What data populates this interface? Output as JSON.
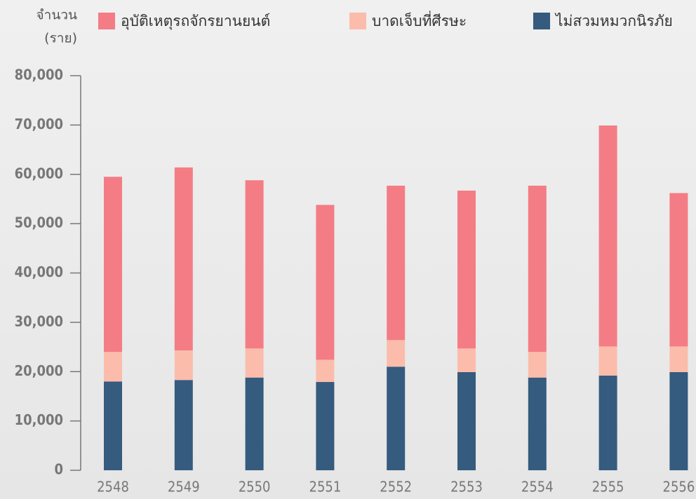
{
  "chart_data": {
    "type": "stacked_bar",
    "y_label_lines": [
      "จำนวน",
      "(ราย)"
    ],
    "categories": [
      "2548",
      "2549",
      "2550",
      "2551",
      "2552",
      "2553",
      "2554",
      "2555",
      "2556"
    ],
    "series": [
      {
        "name": "ไม่สวมหมวกนิรภัย",
        "color": "#355b7e",
        "values": [
          18000,
          18300,
          18800,
          17900,
          21000,
          19900,
          18800,
          19200,
          19900
        ]
      },
      {
        "name": "บาดเจ็บที่ศีรษะ",
        "color": "#fbbcab",
        "values": [
          6000,
          6000,
          5900,
          4500,
          5400,
          4800,
          5200,
          5900,
          5200
        ]
      },
      {
        "name": "อุบัติเหตุรถจักรยานยนต์",
        "color": "#f47c85",
        "values": [
          35500,
          37100,
          34100,
          31400,
          31300,
          32000,
          33700,
          44800,
          31100
        ]
      }
    ],
    "legend_order": [
      2,
      1,
      0
    ],
    "ylim": [
      0,
      80000
    ],
    "yticks": [
      0,
      {
        "value": 10000,
        "label": "10,000"
      },
      {
        "value": 20000,
        "label": "20,000"
      },
      {
        "value": 30000,
        "label": "30,000"
      },
      {
        "value": 40000,
        "label": "40,000"
      },
      {
        "value": 50000,
        "label": "50,000"
      },
      {
        "value": 60000,
        "label": "60,000"
      },
      {
        "value": 70000,
        "label": "70,000"
      },
      {
        "value": 80000,
        "label": "80,000"
      }
    ]
  }
}
